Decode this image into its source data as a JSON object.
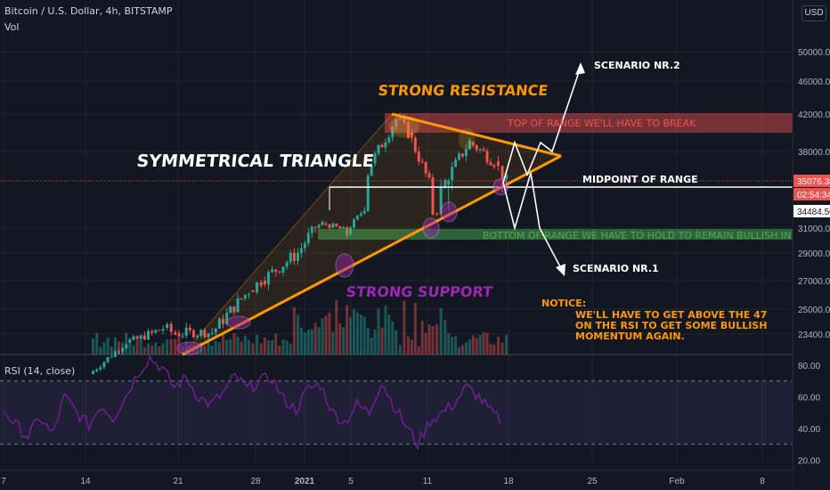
{
  "header": {
    "symbol_line": "Bitcoin / U.S. Dollar, 4h, BITSTAMP",
    "volume_label": "Vol",
    "rsi_label": "RSI (14, close)",
    "currency_button": "USD"
  },
  "colors": {
    "background": "#131722",
    "up": "#26a69a",
    "down": "#ef5350",
    "orange": "#ff9800",
    "purple": "#9c27b0",
    "rsi_line": "#7b1fa2",
    "grid": "#1f2430",
    "axis_text": "#b2b5be"
  },
  "chart_data": [
    {
      "type": "candlestick",
      "price_axis_ticks": [
        "50000.00",
        "46000.00",
        "42000.00",
        "38000.00",
        "31000.00",
        "29000.00",
        "27000.00",
        "25000.00",
        "23400.00"
      ],
      "x_tick_labels": [
        "7",
        "14",
        "21",
        "28",
        "2021",
        "5",
        "11",
        "18",
        "25",
        "Feb",
        "8"
      ],
      "price_markers": [
        {
          "value": "35076.38",
          "label": "35076.38",
          "color": "#ef5350"
        },
        {
          "value": "countdown",
          "label": "02:54:34",
          "color": "#ef5350"
        },
        {
          "value": "34484.50",
          "label": "34484.50",
          "color": "#ffffff"
        }
      ],
      "approx_price_path": [
        {
          "date": "Dec 14",
          "close": 19000
        },
        {
          "date": "Dec 17",
          "close": 22500
        },
        {
          "date": "Dec 20",
          "close": 23800
        },
        {
          "date": "Dec 21",
          "close": 23400
        },
        {
          "date": "Dec 24",
          "close": 23500
        },
        {
          "date": "Dec 27",
          "close": 26300
        },
        {
          "date": "Dec 28",
          "close": 27000
        },
        {
          "date": "Dec 31",
          "close": 29000
        },
        {
          "date": "Jan 2",
          "close": 32000
        },
        {
          "date": "Jan 4",
          "close": 30500
        },
        {
          "date": "Jan 6",
          "close": 36800
        },
        {
          "date": "Jan 8",
          "close": 41500
        },
        {
          "date": "Jan 9",
          "close": 40000
        },
        {
          "date": "Jan 11",
          "close": 34000
        },
        {
          "date": "Jan 12",
          "close": 35000
        },
        {
          "date": "Jan 14",
          "close": 39000
        },
        {
          "date": "Jan 16",
          "close": 37000
        },
        {
          "date": "Jan 17",
          "close": 35076
        }
      ],
      "annotations": [
        {
          "text": "SYMMETRICAL TRIANGLE",
          "color": "#ffffff"
        },
        {
          "text": "STRONG RESISTANCE",
          "color": "#ff9800"
        },
        {
          "text": "STRONG SUPPORT",
          "color": "#9c27b0"
        },
        {
          "text": "TOP OF RANGE WE'LL HAVE TO BREAK",
          "color": "#ef5350"
        },
        {
          "text": "MIDPOINT OF RANGE",
          "color": "#ffffff"
        },
        {
          "text": "BOTTOM OF RANGE WE HAVE TO HOLD TO REMAIN BULLISH IN THE SHORT TERM",
          "color": "#4caf50"
        },
        {
          "text": "SCENARIO NR.2",
          "color": "#ffffff"
        },
        {
          "text": "SCENARIO NR.1",
          "color": "#ffffff"
        },
        {
          "text": "NOTICE:",
          "color": "#ff9800"
        },
        {
          "text": "WE'LL HAVE TO GET ABOVE THE 47",
          "color": "#ff9800"
        },
        {
          "text": "ON THE RSI TO GET SOME BULLISH",
          "color": "#ff9800"
        },
        {
          "text": "MOMENTUM AGAIN.",
          "color": "#ff9800"
        }
      ]
    },
    {
      "type": "line",
      "title": "RSI (14, close)",
      "y_ticks": [
        "80.00",
        "60.00",
        "40.00",
        "20.00"
      ],
      "overbought": 70,
      "oversold": 30,
      "approx_values": [
        52,
        42,
        35,
        47,
        36,
        60,
        50,
        42,
        55,
        47,
        60,
        75,
        85,
        78,
        66,
        72,
        60,
        55,
        62,
        73,
        65,
        70,
        72,
        58,
        52,
        65,
        68,
        50,
        44,
        55,
        50,
        70,
        55,
        42,
        30,
        45,
        50,
        56,
        66,
        60,
        50,
        44
      ]
    }
  ]
}
